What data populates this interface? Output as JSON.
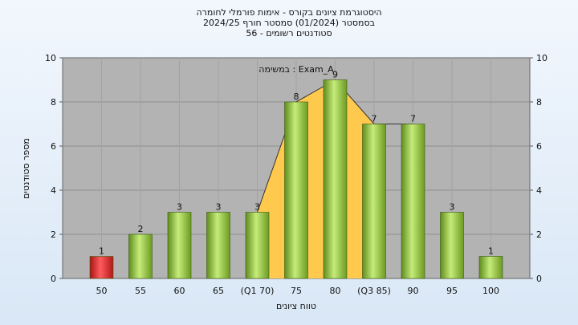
{
  "chart_data": {
    "type": "bar",
    "title": "היסטוגרמת ציונים בקורס - אימות פורמלי לחומרה",
    "subtitle1": "בסמסטר  (01/2024)  סמסטר חורף  2024/25",
    "subtitle2": "סטודנטים רשומים - 56",
    "xlabel": "טווח ציונים",
    "ylabel": "מספר סטודנטים",
    "categories": [
      "50",
      "55",
      "60",
      "65",
      "(Q1 70)",
      "75",
      "80",
      "(Q3 85)",
      "90",
      "95",
      "100"
    ],
    "values": [
      1,
      2,
      3,
      3,
      3,
      8,
      9,
      7,
      7,
      3,
      1
    ],
    "ylim": [
      0,
      10
    ],
    "yticks": [
      0,
      2,
      4,
      6,
      8,
      10
    ],
    "legend": "Exam_A : במשימה",
    "bar_color": "#8cc43e",
    "highlight_bar_color": "#e02020",
    "interquartile_color": "#ffc94d",
    "grid": true
  }
}
